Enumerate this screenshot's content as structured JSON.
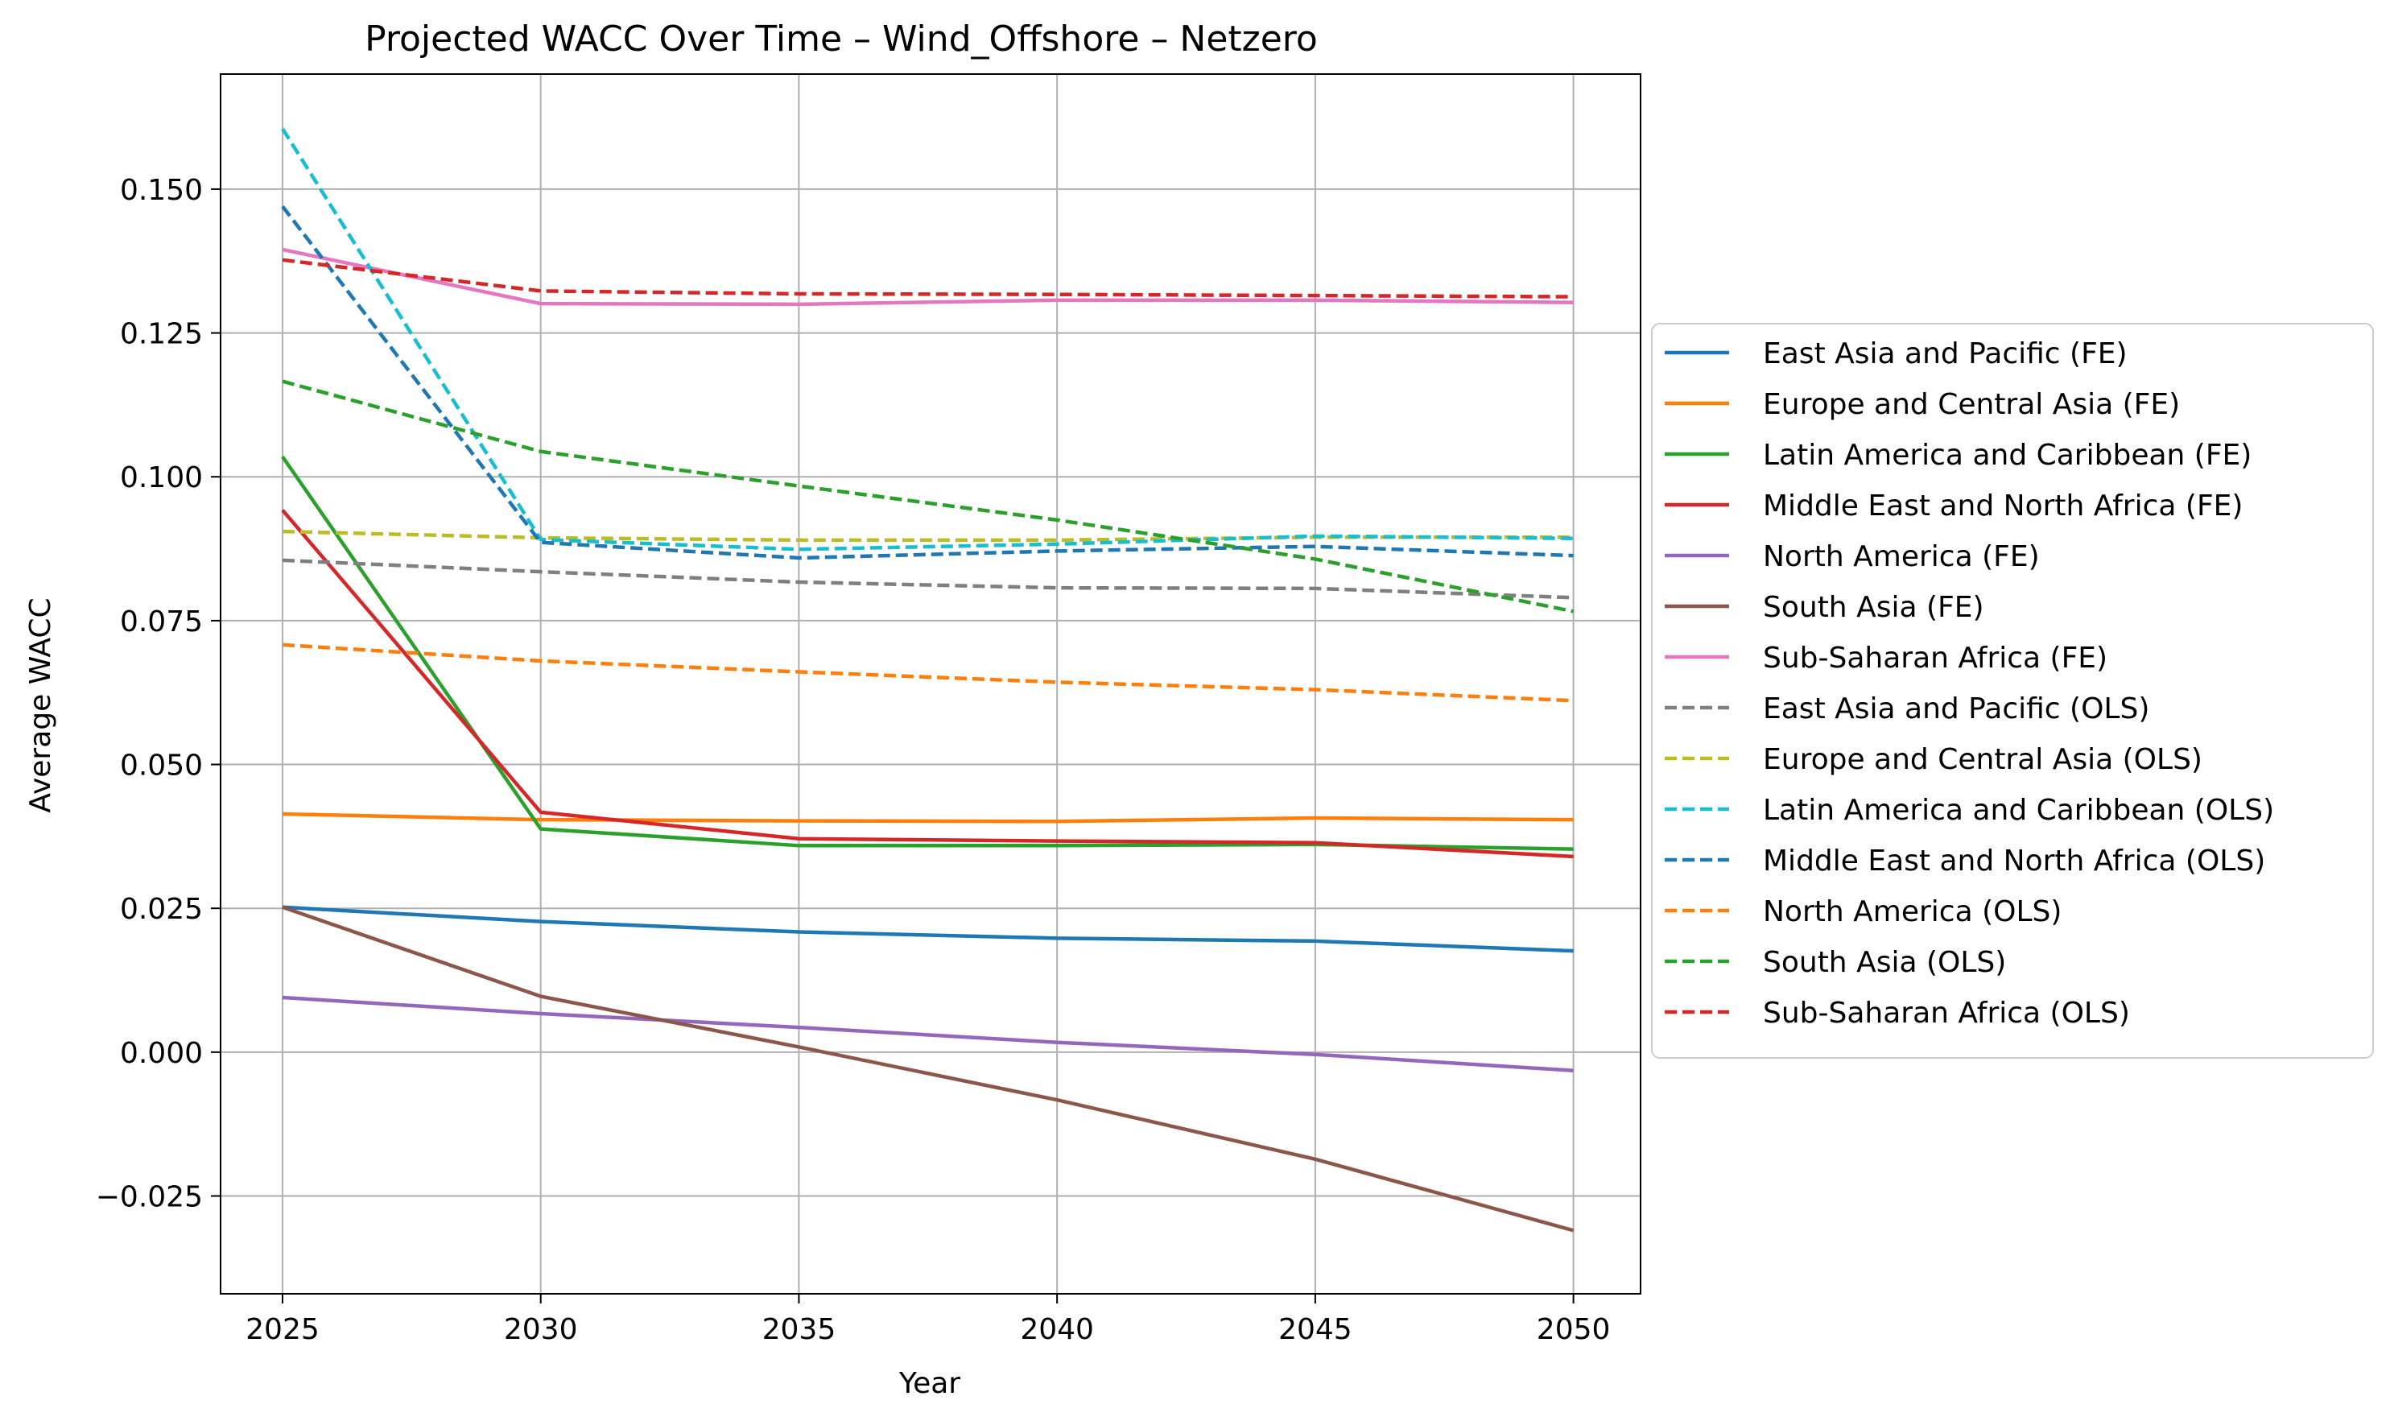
{
  "chart_data": {
    "type": "line",
    "title": "Projected WACC Over Time – Wind_Offshore – Netzero",
    "xlabel": "Year",
    "ylabel": "Average WACC",
    "x": [
      2025,
      2030,
      2035,
      2040,
      2045,
      2050
    ],
    "xlim": [
      2023.8,
      2051.3
    ],
    "ylim": [
      -0.042,
      0.17
    ],
    "xticks": [
      2025,
      2030,
      2035,
      2040,
      2045,
      2050
    ],
    "yticks": [
      -0.025,
      0.0,
      0.025,
      0.05,
      0.075,
      0.1,
      0.125,
      0.15
    ],
    "ytick_labels": [
      "−0.025",
      "0.000",
      "0.025",
      "0.050",
      "0.075",
      "0.100",
      "0.125",
      "0.150"
    ],
    "grid": true,
    "legend_position": "outside right",
    "series": [
      {
        "name": "East Asia and Pacific (FE)",
        "color": "#1f77b4",
        "style": "solid",
        "values": [
          0.0252,
          0.0227,
          0.0209,
          0.0198,
          0.0193,
          0.0176
        ]
      },
      {
        "name": "Europe and Central Asia (FE)",
        "color": "#ff7f0e",
        "style": "solid",
        "values": [
          0.0414,
          0.0404,
          0.0402,
          0.0401,
          0.0407,
          0.0404
        ]
      },
      {
        "name": "Latin America and Caribbean (FE)",
        "color": "#2ca02c",
        "style": "solid",
        "values": [
          0.1035,
          0.0388,
          0.0359,
          0.0359,
          0.0361,
          0.0353
        ]
      },
      {
        "name": "Middle East and North Africa (FE)",
        "color": "#d62728",
        "style": "solid",
        "values": [
          0.0942,
          0.0417,
          0.0371,
          0.0367,
          0.0364,
          0.034
        ]
      },
      {
        "name": "North America (FE)",
        "color": "#9467bd",
        "style": "solid",
        "values": [
          0.0095,
          0.0067,
          0.0043,
          0.0017,
          -0.0004,
          -0.0032
        ]
      },
      {
        "name": "South Asia (FE)",
        "color": "#8c564b",
        "style": "solid",
        "values": [
          0.0252,
          0.0097,
          0.0009,
          -0.0083,
          -0.0186,
          -0.031
        ]
      },
      {
        "name": "Sub-Saharan Africa (FE)",
        "color": "#e377c2",
        "style": "solid",
        "values": [
          0.1395,
          0.1301,
          0.13,
          0.1307,
          0.1307,
          0.1303
        ]
      },
      {
        "name": "East Asia and Pacific (OLS)",
        "color": "#7f7f7f",
        "style": "dashed",
        "values": [
          0.0855,
          0.0835,
          0.0817,
          0.0807,
          0.0806,
          0.079
        ]
      },
      {
        "name": "Europe and Central Asia (OLS)",
        "color": "#bcbd22",
        "style": "dashed",
        "values": [
          0.0905,
          0.0894,
          0.089,
          0.089,
          0.0895,
          0.0895
        ]
      },
      {
        "name": "Latin America and Caribbean (OLS)",
        "color": "#17becf",
        "style": "dashed",
        "values": [
          0.1605,
          0.0891,
          0.0874,
          0.0883,
          0.0897,
          0.0893
        ]
      },
      {
        "name": "Middle East and North Africa (OLS)",
        "color": "#1f77b4",
        "style": "dashed",
        "values": [
          0.147,
          0.0886,
          0.0859,
          0.0871,
          0.0879,
          0.0863
        ]
      },
      {
        "name": "North America (OLS)",
        "color": "#ff7f0e",
        "style": "dashed",
        "values": [
          0.0708,
          0.068,
          0.0661,
          0.0643,
          0.063,
          0.0611
        ]
      },
      {
        "name": "South Asia (OLS)",
        "color": "#2ca02c",
        "style": "dashed",
        "values": [
          0.1166,
          0.1044,
          0.0984,
          0.0925,
          0.0857,
          0.0766
        ]
      },
      {
        "name": "Sub-Saharan Africa (OLS)",
        "color": "#d62728",
        "style": "dashed",
        "values": [
          0.1377,
          0.1323,
          0.1318,
          0.1317,
          0.1315,
          0.1313
        ]
      }
    ]
  }
}
